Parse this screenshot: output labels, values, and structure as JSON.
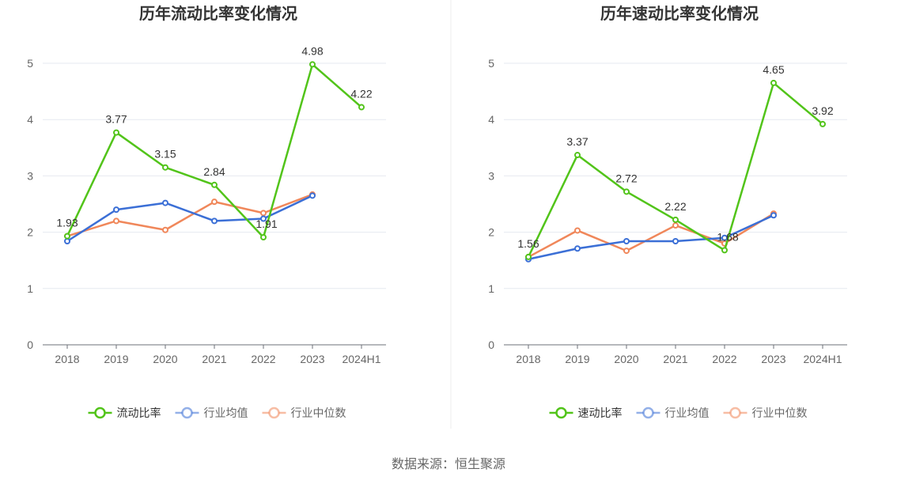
{
  "source": "数据来源：恒生聚源",
  "chart_data": [
    {
      "type": "line",
      "title": "历年流动比率变化情况",
      "categories": [
        "2018",
        "2019",
        "2020",
        "2021",
        "2022",
        "2023",
        "2024H1"
      ],
      "ylim": [
        0,
        5
      ],
      "yticks": [
        0,
        1,
        2,
        3,
        4,
        5
      ],
      "grid": true,
      "legend_position": "bottom",
      "series": [
        {
          "name": "流动比率",
          "color": "#52c41a",
          "labels": true,
          "values": [
            1.93,
            3.77,
            3.15,
            2.84,
            1.91,
            4.98,
            4.22
          ],
          "label_text": [
            "1.93",
            "3.77",
            "3.15",
            "2.84",
            "1.91",
            "4.98",
            "4.22"
          ]
        },
        {
          "name": "行业均值",
          "color": "#3b6fd6",
          "labels": false,
          "values": [
            1.84,
            2.4,
            2.52,
            2.2,
            2.24,
            2.65,
            null
          ]
        },
        {
          "name": "行业中位数",
          "color": "#f0875a",
          "labels": false,
          "values": [
            1.93,
            2.2,
            2.04,
            2.54,
            2.34,
            2.67,
            null
          ]
        }
      ]
    },
    {
      "type": "line",
      "title": "历年速动比率变化情况",
      "categories": [
        "2018",
        "2019",
        "2020",
        "2021",
        "2022",
        "2023",
        "2024H1"
      ],
      "ylim": [
        0,
        5
      ],
      "yticks": [
        0,
        1,
        2,
        3,
        4,
        5
      ],
      "grid": true,
      "legend_position": "bottom",
      "series": [
        {
          "name": "速动比率",
          "color": "#52c41a",
          "labels": true,
          "values": [
            1.56,
            3.37,
            2.72,
            2.22,
            1.68,
            4.65,
            3.92
          ],
          "label_text": [
            "1.56",
            "3.37",
            "2.72",
            "2.22",
            "1.68",
            "4.65",
            "3.92"
          ]
        },
        {
          "name": "行业均值",
          "color": "#3b6fd6",
          "labels": false,
          "values": [
            1.52,
            1.71,
            1.84,
            1.84,
            1.9,
            2.3,
            null
          ]
        },
        {
          "name": "行业中位数",
          "color": "#f0875a",
          "labels": false,
          "values": [
            1.56,
            2.03,
            1.67,
            2.12,
            1.8,
            2.33,
            null
          ]
        }
      ]
    }
  ]
}
